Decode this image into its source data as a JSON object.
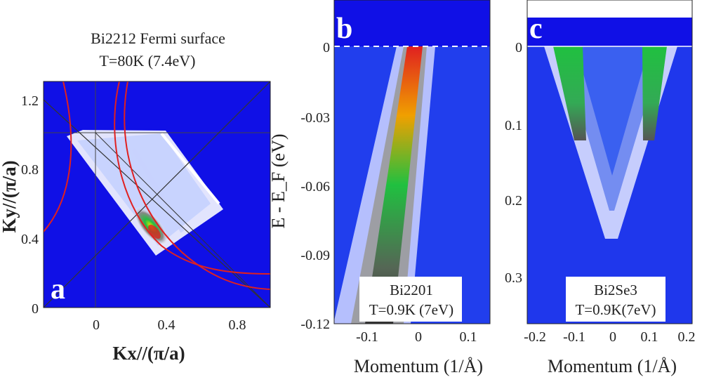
{
  "panel_a": {
    "letter": "a",
    "title_line1": "Bi2212 Fermi surface",
    "title_line2": "T=80K (7.4eV)",
    "xlabel": "Kx//(π/a)",
    "ylabel": "Ky//(π/a)",
    "xticks": [
      "0",
      "0.4",
      "0.8"
    ],
    "yticks": [
      "0",
      "0.4",
      "0.8",
      "1.2"
    ]
  },
  "panel_b": {
    "letter": "b",
    "ylabel": "E - E_F (eV)",
    "yticks": [
      "0",
      "-0.03",
      "-0.06",
      "-0.09",
      "-0.12"
    ],
    "xticks": [
      "-0.1",
      "0",
      "0.1"
    ],
    "xlabel": "Momentum (1/Å)",
    "sample": "Bi2201",
    "conditions": "T=0.9K (7eV)"
  },
  "panel_c": {
    "letter": "c",
    "yticks": [
      "0",
      "0.1",
      "0.2",
      "0.3"
    ],
    "xticks": [
      "-0.2",
      "-0.1",
      "0",
      "0.1",
      "0.2"
    ],
    "xlabel": "Momentum (1/Å)",
    "sample": "Bi2Se3",
    "conditions": "T=0.9K(7eV)"
  },
  "colors": {
    "background": "#1010e6",
    "intensity_high": "#e02020",
    "intensity_mid": "#20c040",
    "contour": "#e02020"
  }
}
